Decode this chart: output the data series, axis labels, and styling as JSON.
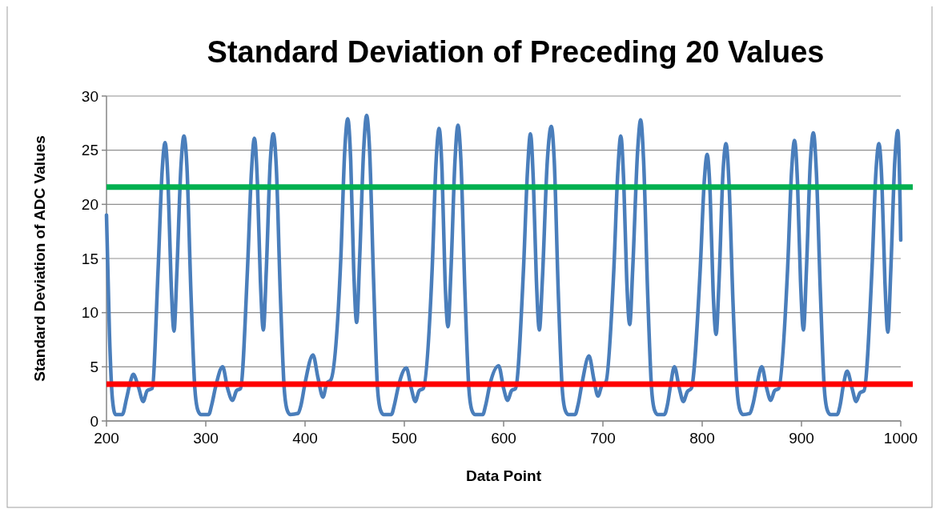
{
  "chart_data": {
    "type": "line",
    "title": "Standard Deviation of Preceding 20 Values",
    "xlabel": "Data Point",
    "ylabel": "Standard Deviation of ADC Values",
    "xlim": [
      200,
      1000
    ],
    "xticks": [
      200,
      300,
      400,
      500,
      600,
      700,
      800,
      900,
      1000
    ],
    "ylim": [
      0,
      30
    ],
    "yticks": [
      0,
      5,
      10,
      15,
      20,
      25,
      30
    ],
    "grid": "y",
    "marker": "none",
    "line_style": "solid",
    "ref_lines": [
      {
        "axis": "y",
        "value": 21.6,
        "color": "#00b050"
      },
      {
        "axis": "y",
        "value": 3.4,
        "color": "#ff0000"
      }
    ],
    "series": [
      {
        "color": "#4a7ebb",
        "x": [
          200,
          203,
          206,
          209,
          216,
          220,
          224,
          227,
          232,
          237,
          241,
          246,
          252,
          256,
          259,
          262,
          265,
          268,
          271,
          275,
          278,
          281,
          285,
          289,
          292,
          295,
          303,
          306,
          310,
          317,
          322,
          327,
          331,
          335,
          342,
          346,
          349,
          352,
          355,
          358,
          361,
          365,
          368,
          371,
          375,
          379,
          382,
          385,
          393,
          396,
          400,
          408,
          413,
          418,
          422,
          426,
          436,
          440,
          443,
          446,
          449,
          452,
          455,
          459,
          462,
          465,
          469,
          473,
          476,
          479,
          487,
          490,
          494,
          502,
          507,
          511,
          515,
          519,
          528,
          532,
          535,
          538,
          541,
          544,
          547,
          551,
          554,
          557,
          561,
          565,
          568,
          571,
          579,
          582,
          586,
          595,
          600,
          604,
          608,
          612,
          620,
          624,
          627,
          630,
          633,
          636,
          639,
          644,
          648,
          651,
          655,
          659,
          662,
          665,
          672,
          675,
          679,
          686,
          691,
          695,
          699,
          703,
          711,
          715,
          718,
          721,
          724,
          727,
          730,
          735,
          738,
          741,
          745,
          749,
          752,
          755,
          762,
          765,
          768,
          772,
          777,
          781,
          785,
          789,
          798,
          802,
          805,
          808,
          811,
          814,
          817,
          821,
          824,
          827,
          831,
          835,
          838,
          841,
          848,
          851,
          855,
          860,
          865,
          869,
          873,
          877,
          886,
          890,
          893,
          896,
          899,
          902,
          905,
          909,
          912,
          915,
          919,
          923,
          926,
          929,
          936,
          939,
          942,
          946,
          951,
          955,
          959,
          963,
          971,
          975,
          978,
          981,
          984,
          987,
          990,
          994,
          997,
          1000
        ],
        "values": [
          19,
          8,
          2,
          0.6,
          0.6,
          2,
          3.6,
          4.3,
          3.2,
          1.8,
          2.8,
          3,
          14,
          23,
          25.7,
          22,
          13,
          8.3,
          14,
          23.5,
          26.3,
          23.5,
          12,
          3,
          1,
          0.6,
          0.6,
          1.5,
          3.2,
          5,
          3,
          1.9,
          2.8,
          3,
          14,
          23,
          26.1,
          22,
          13,
          8.4,
          14,
          24,
          26.5,
          23.5,
          12,
          3,
          1,
          0.6,
          0.7,
          1.5,
          3.5,
          6.1,
          4,
          2.2,
          3.5,
          3.8,
          15,
          25,
          27.9,
          24,
          14,
          9.1,
          15,
          25,
          28.2,
          25,
          13,
          3,
          1,
          0.6,
          0.6,
          1.5,
          3.2,
          4.9,
          3,
          1.8,
          2.8,
          3,
          14,
          24,
          27,
          23,
          13,
          8.7,
          14,
          24,
          27.3,
          24,
          12,
          3,
          1,
          0.6,
          0.6,
          1.5,
          3.3,
          5.1,
          3,
          1.9,
          2.8,
          3,
          14,
          23,
          26.5,
          22,
          13,
          8.4,
          13,
          24,
          27.2,
          24,
          12,
          3,
          1,
          0.6,
          0.6,
          1.5,
          3.5,
          6,
          3.8,
          2.3,
          3.3,
          3.6,
          14,
          23,
          26.3,
          22,
          13,
          8.9,
          14,
          25,
          27.8,
          24,
          12,
          3,
          1,
          0.6,
          0.6,
          1.5,
          3.2,
          5,
          3,
          1.8,
          2.7,
          3,
          14,
          22,
          24.6,
          21,
          12,
          8,
          13,
          23,
          25.6,
          22,
          11,
          3,
          1,
          0.6,
          0.7,
          1.5,
          3.3,
          5,
          3,
          1.9,
          2.8,
          3,
          14,
          23,
          25.9,
          22,
          13,
          8.4,
          14,
          24,
          26.6,
          23,
          12,
          3,
          1,
          0.6,
          0.6,
          1.5,
          3.2,
          4.6,
          3,
          1.8,
          2.6,
          2.8,
          14,
          23,
          25.6,
          22,
          13,
          8.2,
          14,
          24,
          26.8,
          16.7
        ]
      }
    ]
  }
}
